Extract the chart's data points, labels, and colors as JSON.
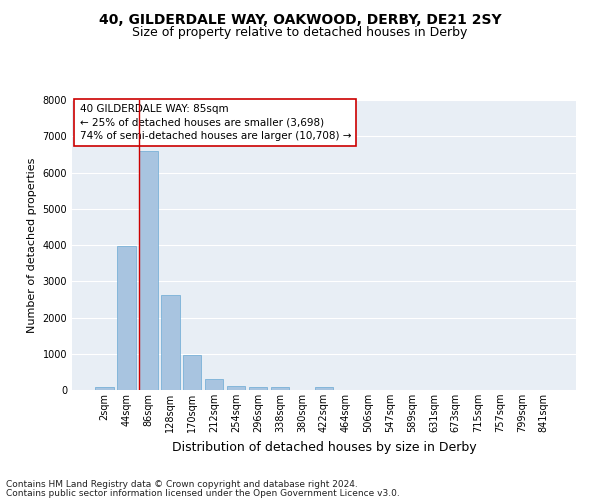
{
  "title1": "40, GILDERDALE WAY, OAKWOOD, DERBY, DE21 2SY",
  "title2": "Size of property relative to detached houses in Derby",
  "xlabel": "Distribution of detached houses by size in Derby",
  "ylabel": "Number of detached properties",
  "categories": [
    "2sqm",
    "44sqm",
    "86sqm",
    "128sqm",
    "170sqm",
    "212sqm",
    "254sqm",
    "296sqm",
    "338sqm",
    "380sqm",
    "422sqm",
    "464sqm",
    "506sqm",
    "547sqm",
    "589sqm",
    "631sqm",
    "673sqm",
    "715sqm",
    "757sqm",
    "799sqm",
    "841sqm"
  ],
  "values": [
    70,
    3980,
    6580,
    2620,
    960,
    310,
    120,
    90,
    70,
    0,
    70,
    0,
    0,
    0,
    0,
    0,
    0,
    0,
    0,
    0,
    0
  ],
  "bar_color": "#a8c4e0",
  "bar_edge_color": "#6aaad4",
  "highlight_line_color": "#cc0000",
  "highlight_line_xindex": 2,
  "annotation_text": "40 GILDERDALE WAY: 85sqm\n← 25% of detached houses are smaller (3,698)\n74% of semi-detached houses are larger (10,708) →",
  "ylim": [
    0,
    8000
  ],
  "yticks": [
    0,
    1000,
    2000,
    3000,
    4000,
    5000,
    6000,
    7000,
    8000
  ],
  "background_color": "#e8eef5",
  "grid_color": "#ffffff",
  "footer1": "Contains HM Land Registry data © Crown copyright and database right 2024.",
  "footer2": "Contains public sector information licensed under the Open Government Licence v3.0.",
  "title1_fontsize": 10,
  "title2_fontsize": 9,
  "xlabel_fontsize": 9,
  "ylabel_fontsize": 8,
  "tick_fontsize": 7,
  "annotation_fontsize": 7.5,
  "footer_fontsize": 6.5
}
